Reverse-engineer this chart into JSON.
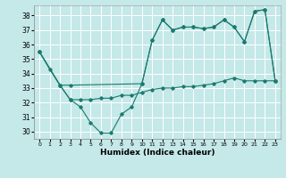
{
  "xlabel": "Humidex (Indice chaleur)",
  "bg_color": "#c5e8e8",
  "line_color": "#1a7a6e",
  "grid_color": "#ffffff",
  "xlim": [
    -0.5,
    23.5
  ],
  "ylim": [
    29.5,
    38.7
  ],
  "yticks": [
    30,
    31,
    32,
    33,
    34,
    35,
    36,
    37,
    38
  ],
  "xticks": [
    0,
    1,
    2,
    3,
    4,
    5,
    6,
    7,
    8,
    9,
    10,
    11,
    12,
    13,
    14,
    15,
    16,
    17,
    18,
    19,
    20,
    21,
    22,
    23
  ],
  "series1_x": [
    0,
    1,
    2,
    3,
    4,
    5,
    6,
    7,
    8,
    9,
    10,
    11,
    12,
    13,
    14,
    15,
    16,
    17,
    18,
    19,
    20,
    21,
    22,
    23
  ],
  "series1_y": [
    35.5,
    34.3,
    33.2,
    32.2,
    31.7,
    30.6,
    29.9,
    29.9,
    31.2,
    31.7,
    33.3,
    36.3,
    37.7,
    37.0,
    37.2,
    37.2,
    37.1,
    37.2,
    37.7,
    37.2,
    36.2,
    38.3,
    38.4,
    33.5
  ],
  "series2_x": [
    0,
    2,
    3,
    10,
    11,
    12,
    13,
    14,
    15,
    16,
    17,
    18,
    19,
    20,
    21,
    22,
    23
  ],
  "series2_y": [
    35.5,
    33.2,
    33.2,
    33.3,
    36.3,
    37.7,
    37.0,
    37.2,
    37.2,
    37.1,
    37.2,
    37.7,
    37.2,
    36.2,
    38.3,
    38.4,
    33.5
  ],
  "series3_x": [
    0,
    2,
    3,
    4,
    5,
    6,
    7,
    8,
    9,
    10,
    11,
    12,
    13,
    14,
    15,
    16,
    17,
    18,
    19,
    20,
    21,
    22,
    23
  ],
  "series3_y": [
    35.5,
    33.2,
    32.2,
    32.2,
    32.2,
    32.3,
    32.3,
    32.5,
    32.5,
    32.7,
    32.9,
    33.0,
    33.0,
    33.1,
    33.1,
    33.2,
    33.3,
    33.5,
    33.7,
    33.5,
    33.5,
    33.5,
    33.5
  ]
}
